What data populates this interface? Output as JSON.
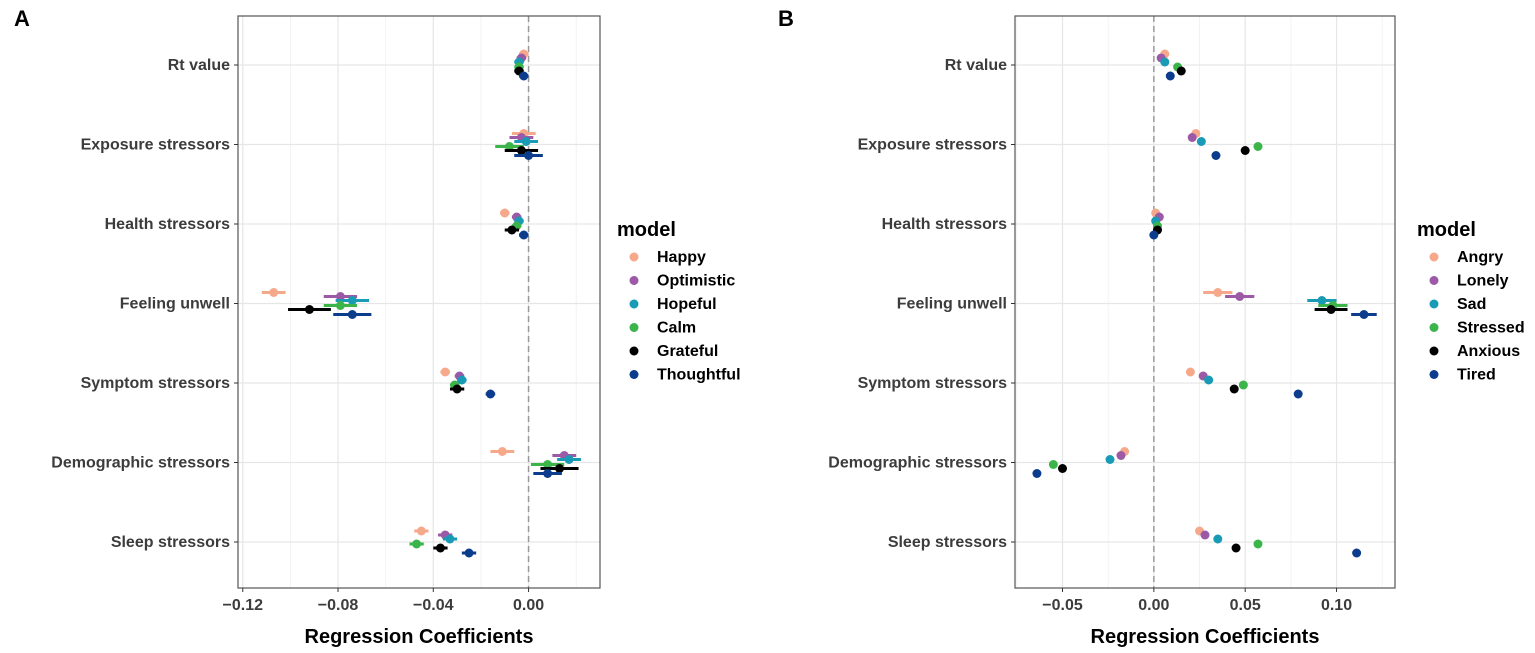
{
  "chart_data": [
    {
      "panel": "A",
      "type": "scatter",
      "subtype": "coefficient-plot-with-error-bars",
      "xlabel": "Regression Coefficients",
      "ylabel": "",
      "xlim": [
        -0.122,
        0.03
      ],
      "xticks": [
        -0.12,
        -0.08,
        -0.04,
        0.0
      ],
      "xtick_labels": [
        "−0.12",
        "−0.08",
        "−0.04",
        "0.00"
      ],
      "reference_line": 0,
      "grid": true,
      "legend_title": "model",
      "legend_position": "right",
      "categories": [
        "Rt value",
        "Exposure stressors",
        "Health stressors",
        "Feeling unwell",
        "Symptom stressors",
        "Demographic stressors",
        "Sleep stressors"
      ],
      "series": [
        {
          "name": "Happy",
          "color": "#f5a98a",
          "values": [
            -0.002,
            -0.002,
            -0.01,
            -0.107,
            -0.035,
            -0.011,
            -0.045
          ],
          "ci": [
            0.002,
            0.005,
            0.002,
            0.005,
            0.002,
            0.005,
            0.003
          ]
        },
        {
          "name": "Optimistic",
          "color": "#9b59a6",
          "values": [
            -0.003,
            -0.003,
            -0.005,
            -0.079,
            -0.029,
            0.015,
            -0.035
          ],
          "ci": [
            0.002,
            0.005,
            0.002,
            0.007,
            0.002,
            0.005,
            0.003
          ]
        },
        {
          "name": "Hopeful",
          "color": "#1a9bb5",
          "values": [
            -0.004,
            -0.001,
            -0.004,
            -0.074,
            -0.028,
            0.017,
            -0.033
          ],
          "ci": [
            0.002,
            0.005,
            0.002,
            0.007,
            0.002,
            0.005,
            0.003
          ]
        },
        {
          "name": "Calm",
          "color": "#3bb54a",
          "values": [
            -0.004,
            -0.008,
            -0.005,
            -0.079,
            -0.031,
            0.008,
            -0.047
          ],
          "ci": [
            0.002,
            0.006,
            0.002,
            0.007,
            0.002,
            0.007,
            0.003
          ]
        },
        {
          "name": "Grateful",
          "color": "#000000",
          "values": [
            -0.004,
            -0.003,
            -0.007,
            -0.092,
            -0.03,
            0.013,
            -0.037
          ],
          "ci": [
            0.002,
            0.007,
            0.003,
            0.009,
            0.003,
            0.008,
            0.003
          ]
        },
        {
          "name": "Thoughtful",
          "color": "#0b3d8c",
          "values": [
            -0.002,
            0.0,
            -0.002,
            -0.074,
            -0.016,
            0.008,
            -0.025
          ],
          "ci": [
            0.002,
            0.006,
            0.002,
            0.008,
            0.002,
            0.006,
            0.003
          ]
        }
      ]
    },
    {
      "panel": "B",
      "type": "scatter",
      "subtype": "coefficient-plot-with-error-bars",
      "xlabel": "Regression Coefficients",
      "ylabel": "",
      "xlim": [
        -0.076,
        0.132
      ],
      "xticks": [
        -0.05,
        0.0,
        0.05,
        0.1
      ],
      "xtick_labels": [
        "−0.05",
        "0.00",
        "0.05",
        "0.10"
      ],
      "reference_line": 0,
      "grid": true,
      "legend_title": "model",
      "legend_position": "right",
      "categories": [
        "Rt value",
        "Exposure stressors",
        "Health stressors",
        "Feeling unwell",
        "Symptom stressors",
        "Demographic stressors",
        "Sleep stressors"
      ],
      "series": [
        {
          "name": "Angry",
          "color": "#f5a98a",
          "values": [
            0.006,
            0.023,
            0.001,
            0.035,
            0.02,
            -0.016,
            0.025
          ],
          "ci": [
            0.001,
            0.002,
            0.001,
            0.008,
            0.001,
            0.002,
            0.001
          ]
        },
        {
          "name": "Lonely",
          "color": "#9b59a6",
          "values": [
            0.004,
            0.021,
            0.003,
            0.047,
            0.027,
            -0.018,
            0.028
          ],
          "ci": [
            0.001,
            0.002,
            0.001,
            0.008,
            0.001,
            0.002,
            0.001
          ]
        },
        {
          "name": "Sad",
          "color": "#1a9bb5",
          "values": [
            0.006,
            0.026,
            0.001,
            0.092,
            0.03,
            -0.024,
            0.035
          ],
          "ci": [
            0.001,
            0.002,
            0.001,
            0.008,
            0.001,
            0.002,
            0.001
          ]
        },
        {
          "name": "Stressed",
          "color": "#3bb54a",
          "values": [
            0.013,
            0.057,
            0.002,
            0.098,
            0.049,
            -0.055,
            0.057
          ],
          "ci": [
            0.001,
            0.002,
            0.001,
            0.008,
            0.001,
            0.002,
            0.001
          ]
        },
        {
          "name": "Anxious",
          "color": "#000000",
          "values": [
            0.015,
            0.05,
            0.002,
            0.097,
            0.044,
            -0.05,
            0.045
          ],
          "ci": [
            0.001,
            0.002,
            0.001,
            0.009,
            0.001,
            0.002,
            0.001
          ]
        },
        {
          "name": "Tired",
          "color": "#0b3d8c",
          "values": [
            0.009,
            0.034,
            0.0,
            0.115,
            0.079,
            -0.064,
            0.111
          ],
          "ci": [
            0.001,
            0.002,
            0.001,
            0.007,
            0.001,
            0.002,
            0.001
          ]
        }
      ]
    }
  ],
  "panel_labels": [
    "A",
    "B"
  ]
}
